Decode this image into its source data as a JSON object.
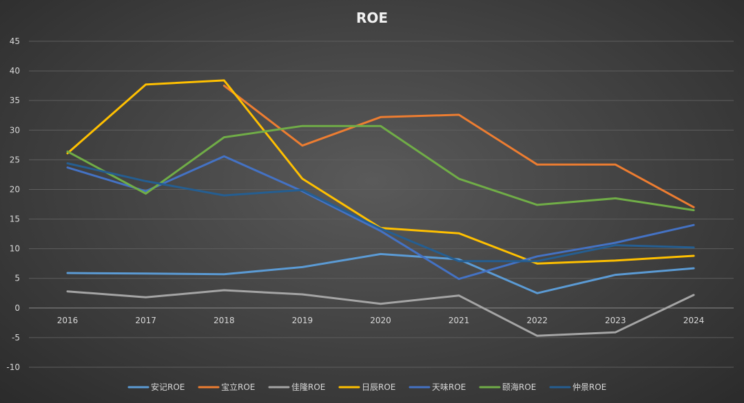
{
  "chart_data": {
    "type": "line",
    "title": "ROE",
    "xlabel": "",
    "ylabel": "",
    "x": [
      "2016",
      "2017",
      "2018",
      "2019",
      "2020",
      "2021",
      "2022",
      "2023",
      "2024"
    ],
    "ylim": [
      -10,
      45
    ],
    "yticks": [
      -10,
      -5,
      0,
      5,
      10,
      15,
      20,
      25,
      30,
      35,
      40,
      45
    ],
    "grid": true,
    "legend_position": "bottom",
    "background": "#404040",
    "series": [
      {
        "name": "安记ROE",
        "color": "#5b9bd5",
        "values": [
          5.9,
          5.8,
          5.7,
          6.9,
          9.1,
          8.2,
          2.5,
          5.6,
          6.7
        ]
      },
      {
        "name": "宝立ROE",
        "color": "#ed7d31",
        "values": [
          null,
          null,
          37.5,
          27.4,
          32.2,
          32.6,
          24.2,
          24.2,
          17.0
        ]
      },
      {
        "name": "佳隆ROE",
        "color": "#a5a5a5",
        "values": [
          2.8,
          1.8,
          3.0,
          2.3,
          0.7,
          2.1,
          -4.7,
          -4.1,
          2.2
        ]
      },
      {
        "name": "日辰ROE",
        "color": "#ffc000",
        "values": [
          26.1,
          37.7,
          38.4,
          21.8,
          13.5,
          12.6,
          7.5,
          8.0,
          8.8
        ]
      },
      {
        "name": "天味ROE",
        "color": "#4472c4",
        "values": [
          23.7,
          19.7,
          25.6,
          19.7,
          13.0,
          4.9,
          8.7,
          11.0,
          14.0
        ]
      },
      {
        "name": "颐海ROE",
        "color": "#70ad47",
        "values": [
          26.4,
          19.3,
          28.8,
          30.7,
          30.7,
          21.8,
          17.4,
          18.5,
          16.5
        ]
      },
      {
        "name": "仲景ROE",
        "color": "#255e91",
        "values": [
          24.4,
          21.4,
          19.0,
          19.9,
          13.4,
          7.9,
          7.9,
          10.6,
          10.2
        ]
      }
    ]
  }
}
